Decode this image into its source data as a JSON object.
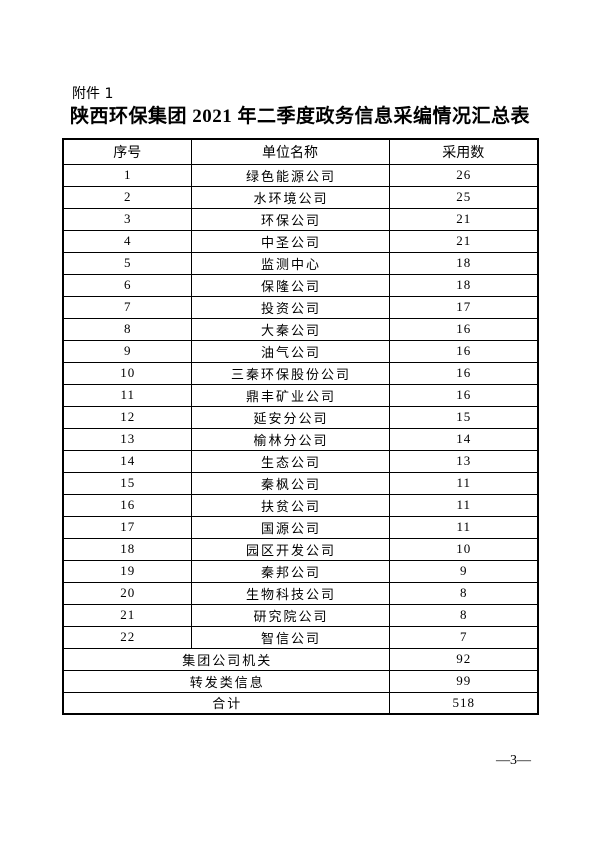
{
  "page": {
    "attachment_label": "附件 1",
    "title": "陕西环保集团 2021 年二季度政务信息采编情况汇总表",
    "page_number": "—3—"
  },
  "table": {
    "headers": [
      "序号",
      "单位名称",
      "采用数"
    ],
    "rows": [
      {
        "no": "1",
        "name": "绿色能源公司",
        "count": "26"
      },
      {
        "no": "2",
        "name": "水环境公司",
        "count": "25"
      },
      {
        "no": "3",
        "name": "环保公司",
        "count": "21"
      },
      {
        "no": "4",
        "name": "中圣公司",
        "count": "21"
      },
      {
        "no": "5",
        "name": "监测中心",
        "count": "18"
      },
      {
        "no": "6",
        "name": "保隆公司",
        "count": "18"
      },
      {
        "no": "7",
        "name": "投资公司",
        "count": "17"
      },
      {
        "no": "8",
        "name": "大秦公司",
        "count": "16"
      },
      {
        "no": "9",
        "name": "油气公司",
        "count": "16"
      },
      {
        "no": "10",
        "name": "三秦环保股份公司",
        "count": "16"
      },
      {
        "no": "11",
        "name": "鼎丰矿业公司",
        "count": "16"
      },
      {
        "no": "12",
        "name": "延安分公司",
        "count": "15"
      },
      {
        "no": "13",
        "name": "榆林分公司",
        "count": "14"
      },
      {
        "no": "14",
        "name": "生态公司",
        "count": "13"
      },
      {
        "no": "15",
        "name": "秦枫公司",
        "count": "11"
      },
      {
        "no": "16",
        "name": "扶贫公司",
        "count": "11"
      },
      {
        "no": "17",
        "name": "国源公司",
        "count": "11"
      },
      {
        "no": "18",
        "name": "园区开发公司",
        "count": "10"
      },
      {
        "no": "19",
        "name": "秦邦公司",
        "count": "9"
      },
      {
        "no": "20",
        "name": "生物科技公司",
        "count": "8"
      },
      {
        "no": "21",
        "name": "研究院公司",
        "count": "8"
      },
      {
        "no": "22",
        "name": "智信公司",
        "count": "7"
      }
    ],
    "summary": [
      {
        "label": "集团公司机关",
        "value": "92"
      },
      {
        "label": "转发类信息",
        "value": "99"
      },
      {
        "label": "合计",
        "value": "518"
      }
    ]
  }
}
